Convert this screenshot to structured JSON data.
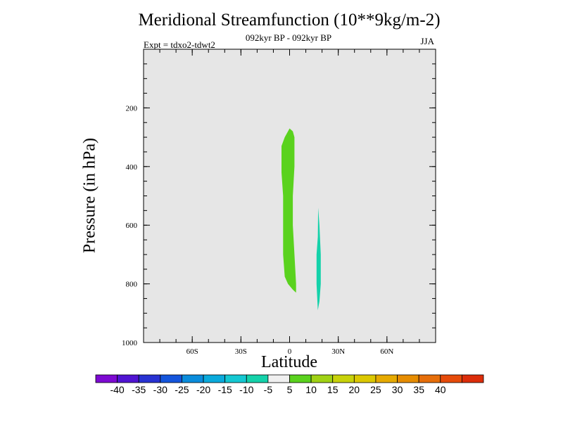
{
  "chart_data": {
    "type": "contour",
    "title": "Meridional Streamfunction (10**9kg/m-2)",
    "subtitle_center": "092kyr BP - 092kyr BP",
    "subtitle_left": "Expt = tdxo2-tdwt2",
    "subtitle_right": "JJA",
    "xlabel": "Latitude",
    "ylabel": "Pressure (in hPa)",
    "xlim": [
      -90,
      90
    ],
    "ylim": [
      1000,
      0
    ],
    "x_ticks": [
      {
        "value": -60,
        "label": "60S"
      },
      {
        "value": -30,
        "label": "30S"
      },
      {
        "value": 0,
        "label": "0"
      },
      {
        "value": 30,
        "label": "30N"
      },
      {
        "value": 60,
        "label": "60N"
      }
    ],
    "y_ticks": [
      {
        "value": 200,
        "label": "200"
      },
      {
        "value": 400,
        "label": "400"
      },
      {
        "value": 600,
        "label": "600"
      },
      {
        "value": 800,
        "label": "800"
      },
      {
        "value": 1000,
        "label": "1000"
      }
    ],
    "background_color": "#e6e6e6",
    "regions": [
      {
        "level": "5 to 10",
        "color": "#5ad21e",
        "outline": [
          [
            -4,
            500
          ],
          [
            -5,
            420
          ],
          [
            -5,
            330
          ],
          [
            -3,
            300
          ],
          [
            -1,
            280
          ],
          [
            0,
            270
          ],
          [
            2,
            280
          ],
          [
            3,
            300
          ],
          [
            3,
            400
          ],
          [
            2,
            500
          ],
          [
            2,
            600
          ],
          [
            3,
            700
          ],
          [
            4,
            800
          ],
          [
            4,
            830
          ],
          [
            2,
            820
          ],
          [
            -1,
            800
          ],
          [
            -3,
            775
          ],
          [
            -4,
            700
          ],
          [
            -4,
            600
          ]
        ]
      },
      {
        "level": "-10 to -5",
        "color": "#14d2aa",
        "outline": [
          [
            16.6,
            700
          ],
          [
            17.4,
            640
          ],
          [
            17.6,
            540
          ],
          [
            18.4,
            600
          ],
          [
            19.2,
            700
          ],
          [
            19.2,
            800
          ],
          [
            18.4,
            860
          ],
          [
            17.4,
            890
          ],
          [
            16.6,
            800
          ]
        ]
      }
    ],
    "colorbar": {
      "colors": [
        "#7d0ad2",
        "#5014d2",
        "#2832d2",
        "#1455dc",
        "#0a8cdc",
        "#0aaadc",
        "#14c8d2",
        "#14d2aa",
        "#f0f0f0",
        "#5ad21e",
        "#a0d214",
        "#c8d20a",
        "#dcc800",
        "#e6aa00",
        "#e68c00",
        "#e66e0a",
        "#e64b0a",
        "#dc2d0a"
      ],
      "labels": [
        "-40",
        "-35",
        "-30",
        "-25",
        "-20",
        "-15",
        "-10",
        "-5",
        "5",
        "10",
        "15",
        "20",
        "25",
        "30",
        "35",
        "40"
      ]
    }
  }
}
